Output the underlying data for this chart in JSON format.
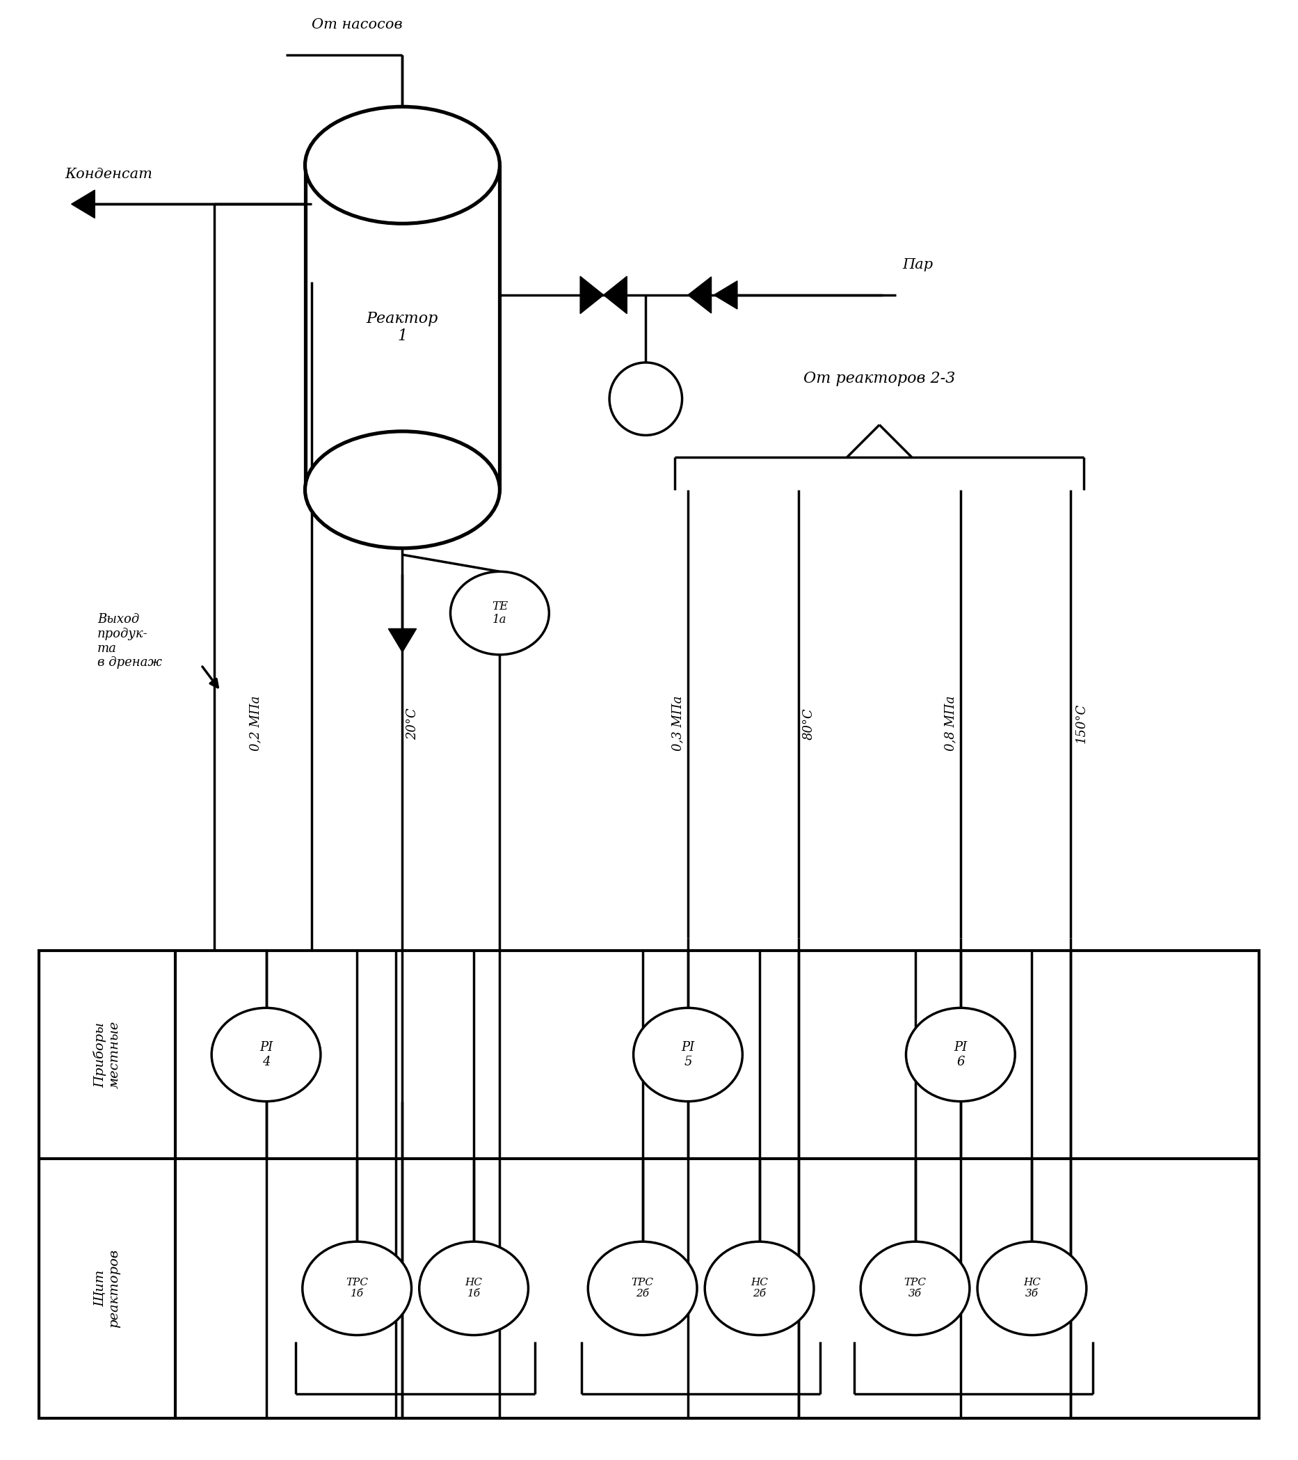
{
  "bg_color": "#ffffff",
  "line_color": "#000000",
  "title_from_pumps": "От насосов",
  "title_condensate": "Конденсат",
  "title_reactor": "Реактор\n1",
  "title_steam": "Пар",
  "title_exit": "Выход\nпродук-\nта\nв дренаж",
  "title_from_reactors": "От реакторов 2-3",
  "label_022": "0,2 МПа",
  "label_20c": "20°С",
  "label_033": "0,3 МПа",
  "label_80c": "80°С",
  "label_088": "0,8 МПа",
  "label_150c": "150°С",
  "instrument_TE": "ТЕ\n1а",
  "instrument_PI4": "PI\n4",
  "instrument_PI5": "PI\n5",
  "instrument_PI6": "PI\n6",
  "instrument_TRC1b": "ТРС\n1б",
  "instrument_NC1b": "НС\n1б",
  "instrument_TRC2b": "ТРС\n2б",
  "instrument_NC2b": "НС\n2б",
  "instrument_TRC3b": "ТРС\n3б",
  "instrument_NC3b": "НС\n3б",
  "row1_label": "Приборы\nместные",
  "row2_label": "Щит\nреакторов"
}
